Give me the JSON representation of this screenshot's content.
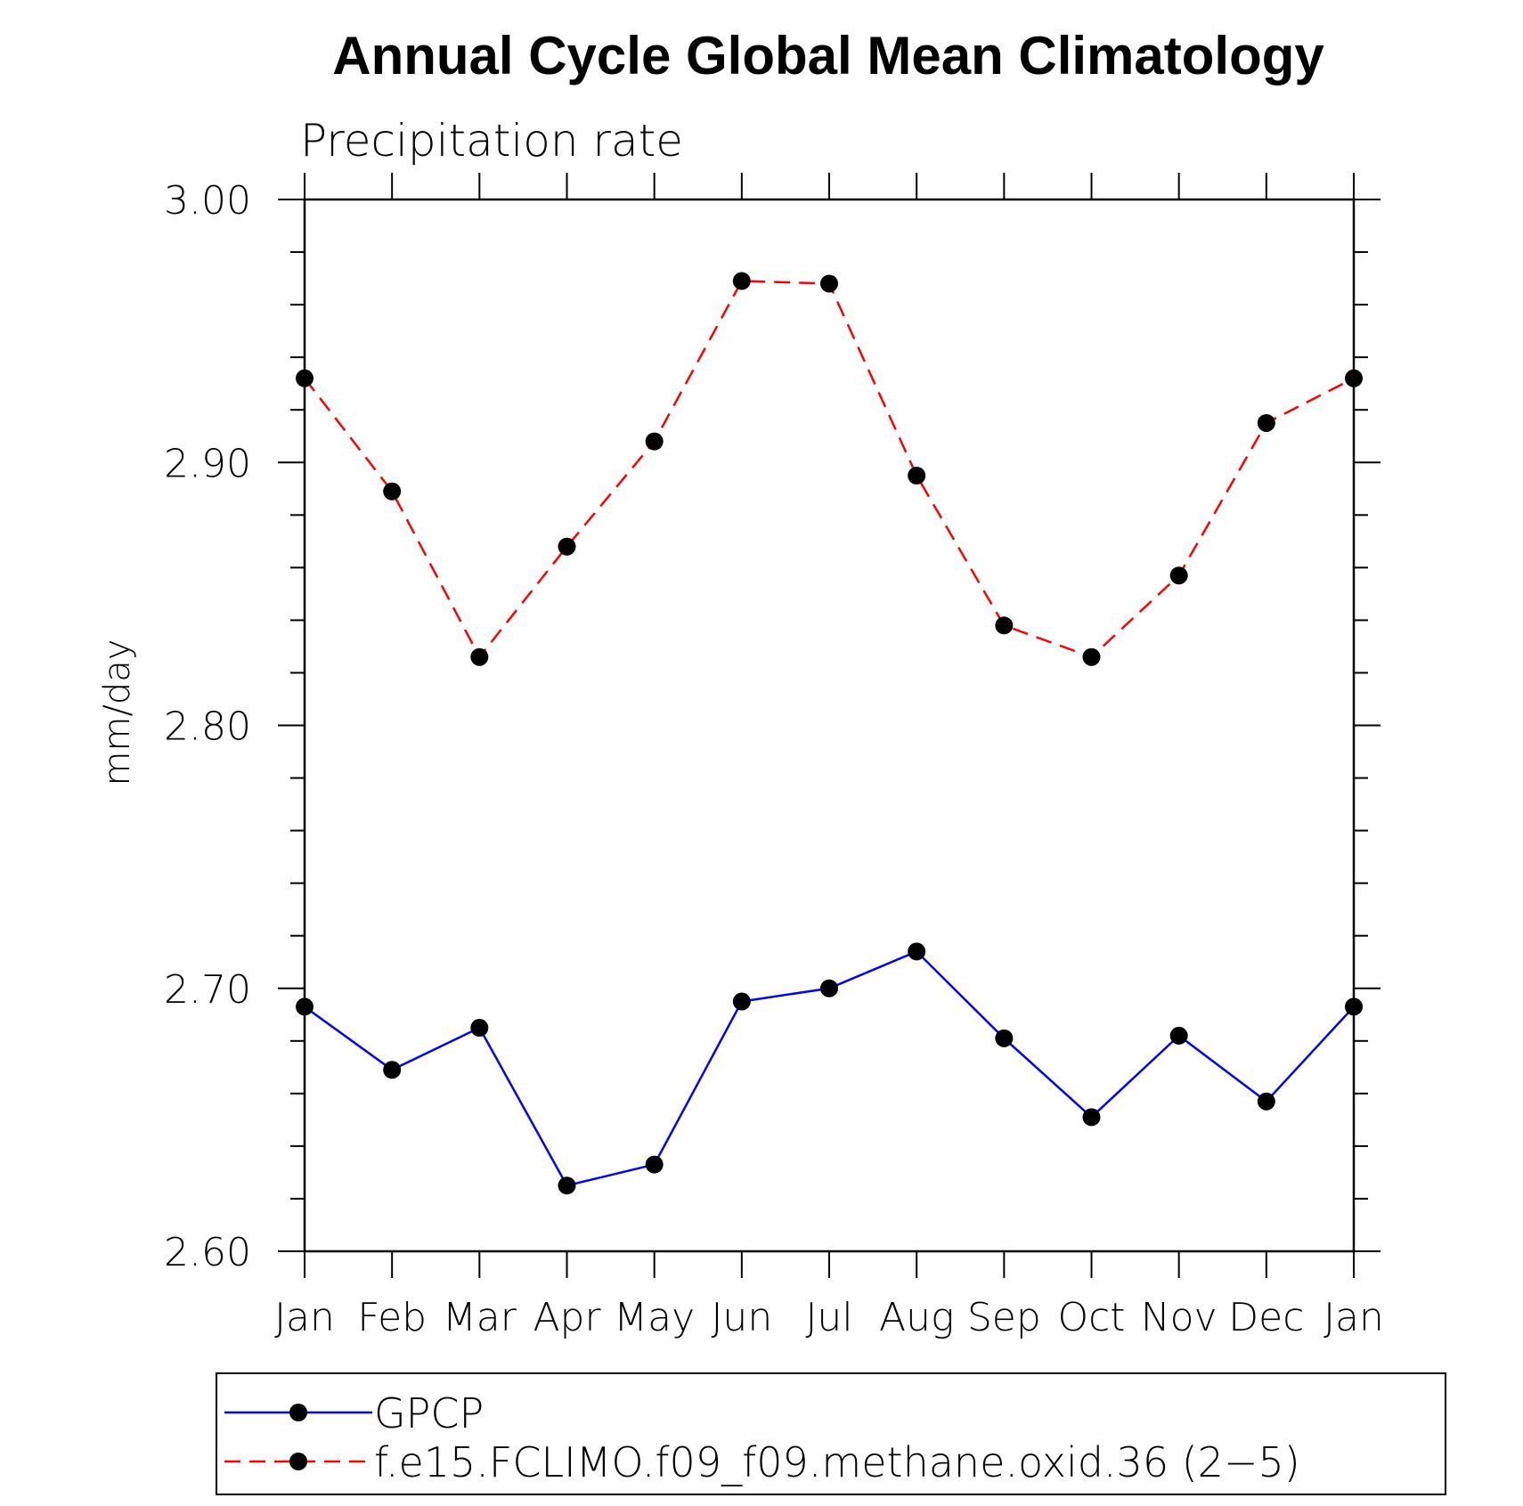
{
  "chart_data": {
    "type": "line",
    "title": "Annual Cycle Global Mean Climatology",
    "subtitle": "Precipitation rate",
    "xlabel": "",
    "ylabel": "mm/day",
    "categories": [
      "Jan",
      "Feb",
      "Mar",
      "Apr",
      "May",
      "Jun",
      "Jul",
      "Aug",
      "Sep",
      "Oct",
      "Nov",
      "Dec",
      "Jan"
    ],
    "ylim": [
      2.6,
      3.0
    ],
    "yticks": [
      "2.60",
      "2.70",
      "2.80",
      "2.90",
      "3.00"
    ],
    "grid": false,
    "legend_position": "bottom",
    "series": [
      {
        "name": "GPCP",
        "color": "#0000ff",
        "line_style": "solid",
        "marker": "filled-circle",
        "values": [
          2.693,
          2.669,
          2.685,
          2.625,
          2.633,
          2.695,
          2.7,
          2.714,
          2.681,
          2.651,
          2.682,
          2.657,
          2.693
        ]
      },
      {
        "name": "f.e15.FCLIMO.f09_f09.methane.oxid.36 (2−5)",
        "color": "#ff0000",
        "line_style": "dashed",
        "marker": "filled-circle",
        "values": [
          2.932,
          2.889,
          2.826,
          2.868,
          2.908,
          2.969,
          2.968,
          2.895,
          2.838,
          2.826,
          2.857,
          2.915,
          2.932
        ]
      }
    ]
  }
}
